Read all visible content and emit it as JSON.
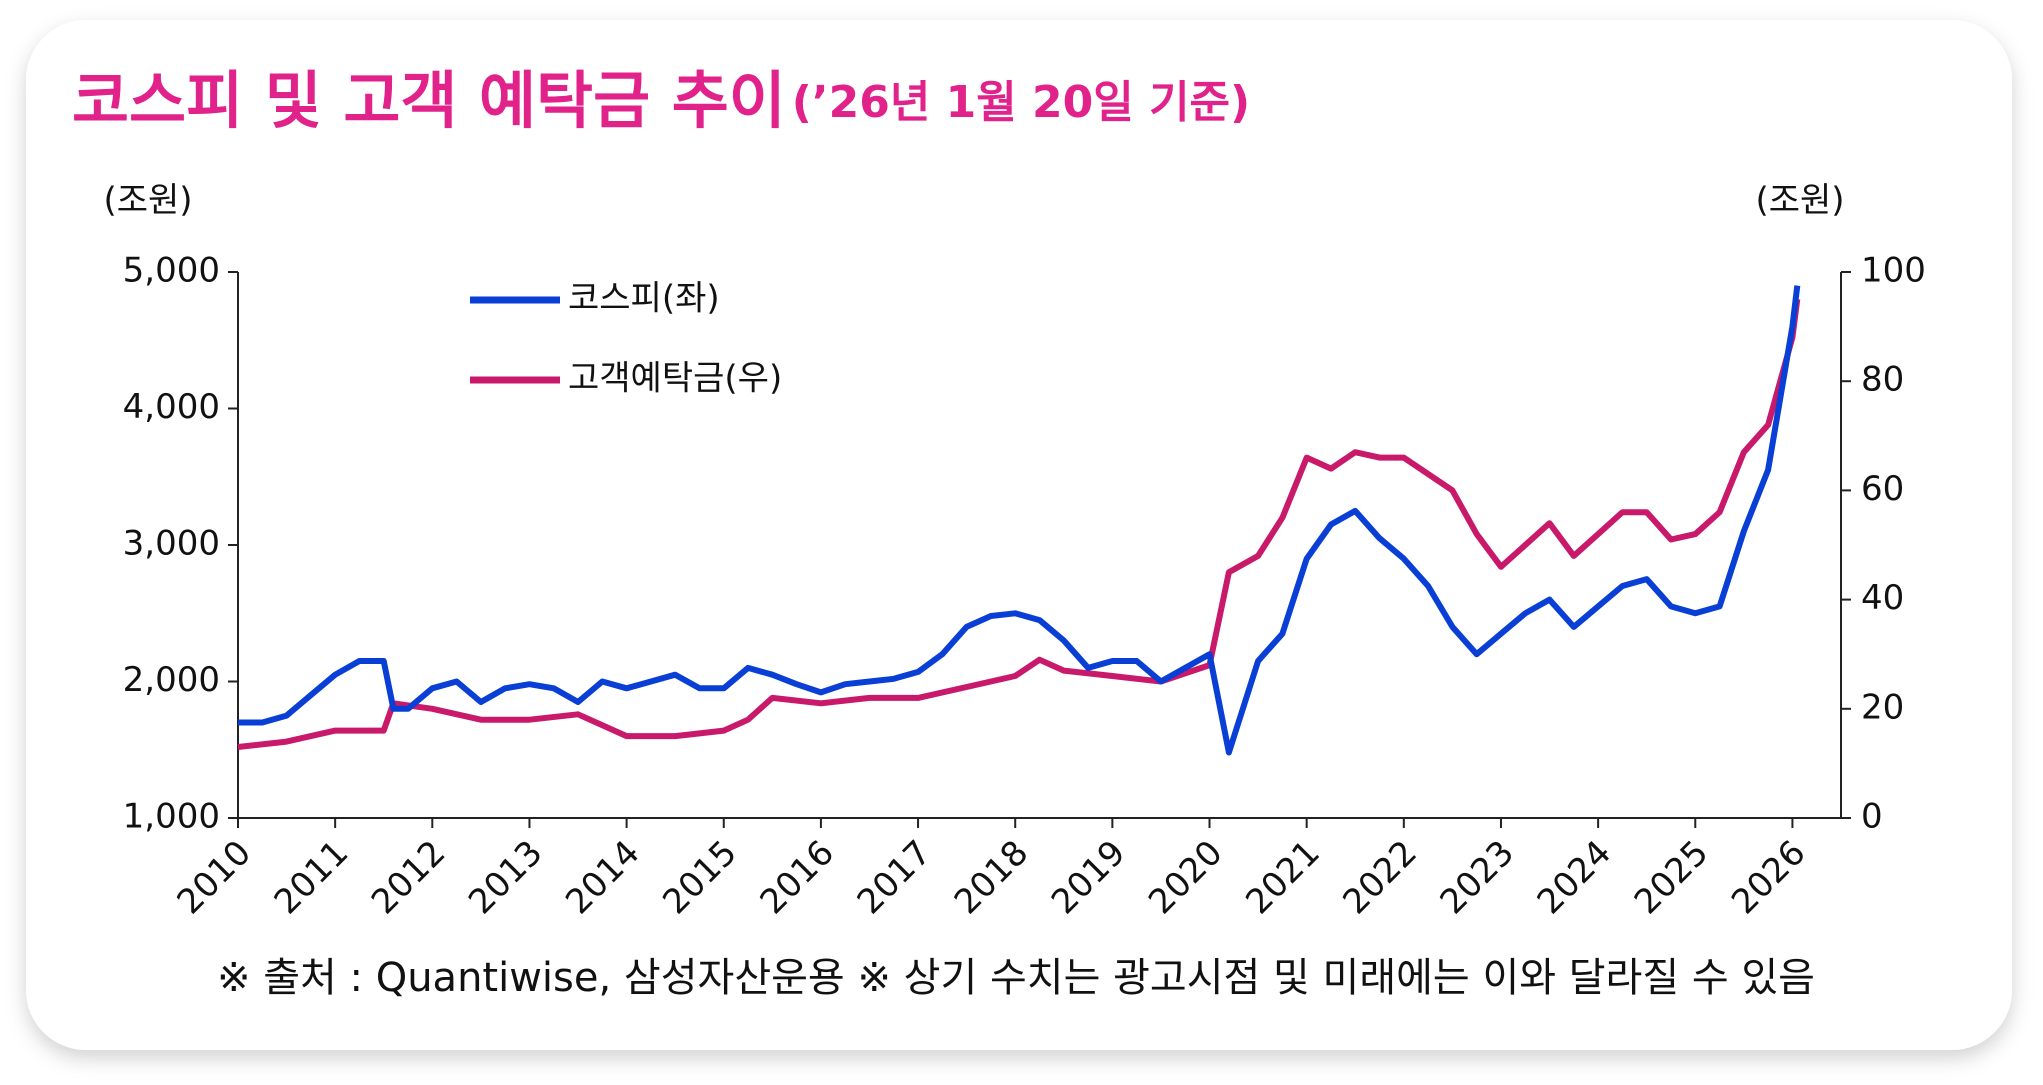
{
  "chart_data": {
    "type": "line",
    "title": "코스피 및 고객 예탁금 추이",
    "subtitle": "(’26년 1월 20일 기준)",
    "y_unit": "(조원)",
    "y2_unit": "(조원)",
    "note": "※ 출처 : Quantiwise, 삼성자산운용 ※ 상기 수치는 광고시점 및 미래에는 이와 달라질 수 있음",
    "xlim": [
      2010,
      2026.5
    ],
    "xticks": [
      2010,
      2011,
      2012,
      2013,
      2014,
      2015,
      2016,
      2017,
      2018,
      2019,
      2020,
      2021,
      2022,
      2023,
      2024,
      2025,
      2026
    ],
    "ylim": [
      1000,
      5000
    ],
    "yticks": [
      {
        "value": 1000,
        "label": "1,000"
      },
      {
        "value": 2000,
        "label": "2,000"
      },
      {
        "value": 3000,
        "label": "3,000"
      },
      {
        "value": 4000,
        "label": "4,000"
      },
      {
        "value": 5000,
        "label": "5,000"
      }
    ],
    "y2lim": [
      0,
      100
    ],
    "y2ticks": [
      0,
      20,
      40,
      60,
      80,
      100
    ],
    "series": [
      {
        "name": "코스피(좌)",
        "color": "#0a3fd6",
        "axis": "y",
        "x": [
          2010,
          2010.25,
          2010.5,
          2010.75,
          2011,
          2011.25,
          2011.5,
          2011.6,
          2011.75,
          2012,
          2012.25,
          2012.5,
          2012.75,
          2013,
          2013.25,
          2013.5,
          2013.75,
          2014,
          2014.25,
          2014.5,
          2014.75,
          2015,
          2015.25,
          2015.5,
          2015.75,
          2016,
          2016.25,
          2016.5,
          2016.75,
          2017,
          2017.25,
          2017.5,
          2017.75,
          2018,
          2018.25,
          2018.5,
          2018.75,
          2019,
          2019.25,
          2019.5,
          2019.75,
          2020,
          2020.2,
          2020.5,
          2020.75,
          2021,
          2021.25,
          2021.5,
          2021.75,
          2022,
          2022.25,
          2022.5,
          2022.75,
          2023,
          2023.25,
          2023.5,
          2023.75,
          2024,
          2024.25,
          2024.5,
          2024.75,
          2025,
          2025.25,
          2025.5,
          2025.75,
          2026,
          2026.05
        ],
        "values": [
          1700,
          1700,
          1750,
          1900,
          2050,
          2150,
          2150,
          1800,
          1800,
          1950,
          2000,
          1850,
          1950,
          1980,
          1950,
          1850,
          2000,
          1950,
          2000,
          2050,
          1950,
          1950,
          2100,
          2050,
          1980,
          1920,
          1980,
          2000,
          2020,
          2070,
          2200,
          2400,
          2480,
          2500,
          2450,
          2300,
          2100,
          2150,
          2150,
          2000,
          2100,
          2200,
          1480,
          2150,
          2350,
          2900,
          3150,
          3250,
          3050,
          2900,
          2700,
          2400,
          2200,
          2350,
          2500,
          2600,
          2400,
          2550,
          2700,
          2750,
          2550,
          2500,
          2550,
          3100,
          3550,
          4600,
          4900
        ]
      },
      {
        "name": "고객예탁금(우)",
        "color": "#c8196b",
        "axis": "y2",
        "x": [
          2010,
          2010.5,
          2011,
          2011.5,
          2011.6,
          2012,
          2012.5,
          2013,
          2013.5,
          2014,
          2014.5,
          2015,
          2015.25,
          2015.5,
          2016,
          2016.5,
          2017,
          2017.5,
          2018,
          2018.25,
          2018.5,
          2019,
          2019.5,
          2020,
          2020.2,
          2020.5,
          2020.75,
          2021,
          2021.25,
          2021.5,
          2021.75,
          2022,
          2022.5,
          2022.75,
          2023,
          2023.25,
          2023.5,
          2023.75,
          2024,
          2024.25,
          2024.5,
          2024.75,
          2025,
          2025.25,
          2025.5,
          2025.75,
          2026,
          2026.05
        ],
        "values": [
          13,
          14,
          16,
          16,
          21,
          20,
          18,
          18,
          19,
          15,
          15,
          16,
          18,
          22,
          21,
          22,
          22,
          24,
          26,
          29,
          27,
          26,
          25,
          28,
          45,
          48,
          55,
          66,
          64,
          67,
          66,
          66,
          60,
          52,
          46,
          50,
          54,
          48,
          52,
          56,
          56,
          51,
          52,
          56,
          67,
          72,
          88,
          95
        ]
      }
    ]
  }
}
